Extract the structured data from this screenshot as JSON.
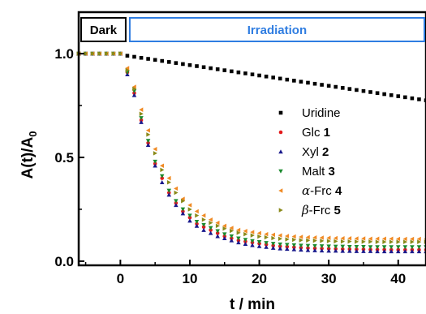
{
  "chart_data": {
    "type": "scatter",
    "xlabel": "t / min",
    "ylabel_main": "A(t)/A",
    "ylabel_sub": "0",
    "xlim": [
      -6,
      44
    ],
    "ylim": [
      -0.02,
      1.2
    ],
    "x_ticks": [
      {
        "value": 0,
        "label": "0"
      },
      {
        "value": 10,
        "label": "10"
      },
      {
        "value": 20,
        "label": "20"
      },
      {
        "value": 30,
        "label": "30"
      },
      {
        "value": 40,
        "label": "40"
      }
    ],
    "y_ticks": [
      {
        "value": 0.0,
        "label": "0.0"
      },
      {
        "value": 0.5,
        "label": "0.5"
      },
      {
        "value": 1.0,
        "label": "1.0"
      }
    ],
    "phases": [
      {
        "label": "Dark",
        "x_start": -6,
        "x_end": 1,
        "color": "#000000"
      },
      {
        "label": "Irradiation",
        "x_start": 1,
        "x_end": 44,
        "color": "#2f7de1"
      }
    ],
    "legend": {
      "position": "right"
    },
    "series": [
      {
        "name": "Uridine",
        "number": "",
        "prefix": "",
        "marker": "square",
        "color": "#000000",
        "x": [
          -6,
          -5,
          -4,
          -3,
          -2,
          -1,
          0,
          1,
          2,
          3,
          4,
          5,
          6,
          7,
          8,
          9,
          10,
          11,
          12,
          13,
          14,
          15,
          16,
          17,
          18,
          19,
          20,
          21,
          22,
          23,
          24,
          25,
          26,
          27,
          28,
          29,
          30,
          31,
          32,
          33,
          34,
          35,
          36,
          37,
          38,
          39,
          40,
          41,
          42,
          43,
          44
        ],
        "y": [
          1.0,
          1.0,
          1.0,
          1.0,
          1.0,
          1.0,
          1.0,
          0.99,
          0.985,
          0.98,
          0.975,
          0.97,
          0.965,
          0.96,
          0.955,
          0.95,
          0.945,
          0.94,
          0.935,
          0.93,
          0.925,
          0.92,
          0.915,
          0.91,
          0.905,
          0.9,
          0.895,
          0.89,
          0.885,
          0.88,
          0.875,
          0.87,
          0.865,
          0.86,
          0.855,
          0.85,
          0.845,
          0.84,
          0.835,
          0.83,
          0.825,
          0.82,
          0.815,
          0.81,
          0.805,
          0.8,
          0.795,
          0.79,
          0.785,
          0.78,
          0.775
        ]
      },
      {
        "name": "Glc",
        "number": "1",
        "prefix": "",
        "marker": "circle",
        "color": "#e31a1c",
        "x": [
          -6,
          -5,
          -4,
          -3,
          -2,
          -1,
          0,
          1,
          2,
          3,
          4,
          5,
          6,
          7,
          8,
          9,
          10,
          11,
          12,
          13,
          14,
          15,
          16,
          17,
          18,
          19,
          20,
          21,
          22,
          23,
          24,
          25,
          26,
          27,
          28,
          29,
          30,
          31,
          32,
          33,
          34,
          35,
          36,
          37,
          38,
          39,
          40,
          41,
          42,
          43,
          44
        ],
        "y": [
          1.0,
          1.0,
          1.0,
          1.0,
          1.0,
          1.0,
          1.0,
          0.91,
          0.81,
          0.68,
          0.57,
          0.47,
          0.4,
          0.33,
          0.28,
          0.24,
          0.21,
          0.18,
          0.165,
          0.15,
          0.135,
          0.12,
          0.11,
          0.1,
          0.095,
          0.09,
          0.085,
          0.08,
          0.075,
          0.072,
          0.07,
          0.067,
          0.065,
          0.063,
          0.062,
          0.061,
          0.06,
          0.059,
          0.058,
          0.058,
          0.057,
          0.057,
          0.056,
          0.056,
          0.056,
          0.055,
          0.055,
          0.055,
          0.055,
          0.055,
          0.055
        ]
      },
      {
        "name": "Xyl",
        "number": "2",
        "prefix": "",
        "marker": "triangle-up",
        "color": "#1a1a8c",
        "x": [
          -6,
          -5,
          -4,
          -3,
          -2,
          -1,
          0,
          1,
          2,
          3,
          4,
          5,
          6,
          7,
          8,
          9,
          10,
          11,
          12,
          13,
          14,
          15,
          16,
          17,
          18,
          19,
          20,
          21,
          22,
          23,
          24,
          25,
          26,
          27,
          28,
          29,
          30,
          31,
          32,
          33,
          34,
          35,
          36,
          37,
          38,
          39,
          40,
          41,
          42,
          43,
          44
        ],
        "y": [
          1.0,
          1.0,
          1.0,
          1.0,
          1.0,
          1.0,
          1.0,
          0.9,
          0.8,
          0.67,
          0.56,
          0.46,
          0.38,
          0.32,
          0.27,
          0.23,
          0.195,
          0.17,
          0.15,
          0.135,
          0.12,
          0.11,
          0.1,
          0.09,
          0.083,
          0.077,
          0.072,
          0.068,
          0.064,
          0.061,
          0.059,
          0.057,
          0.055,
          0.053,
          0.052,
          0.051,
          0.05,
          0.05,
          0.049,
          0.049,
          0.048,
          0.048,
          0.048,
          0.047,
          0.047,
          0.047,
          0.047,
          0.047,
          0.047,
          0.047,
          0.047
        ]
      },
      {
        "name": "Malt",
        "number": "3",
        "prefix": "",
        "marker": "triangle-down",
        "color": "#1a8a2e",
        "x": [
          -6,
          -5,
          -4,
          -3,
          -2,
          -1,
          0,
          1,
          2,
          3,
          4,
          5,
          6,
          7,
          8,
          9,
          10,
          11,
          12,
          13,
          14,
          15,
          16,
          17,
          18,
          19,
          20,
          21,
          22,
          23,
          24,
          25,
          26,
          27,
          28,
          29,
          30,
          31,
          32,
          33,
          34,
          35,
          36,
          37,
          38,
          39,
          40,
          41,
          42,
          43,
          44
        ],
        "y": [
          1.0,
          1.0,
          1.0,
          1.0,
          1.0,
          1.0,
          1.0,
          0.91,
          0.82,
          0.69,
          0.58,
          0.48,
          0.41,
          0.34,
          0.29,
          0.25,
          0.22,
          0.19,
          0.175,
          0.16,
          0.145,
          0.13,
          0.12,
          0.11,
          0.103,
          0.097,
          0.092,
          0.088,
          0.084,
          0.081,
          0.079,
          0.077,
          0.075,
          0.074,
          0.073,
          0.072,
          0.071,
          0.07,
          0.07,
          0.069,
          0.069,
          0.069,
          0.068,
          0.068,
          0.068,
          0.068,
          0.068,
          0.068,
          0.068,
          0.068,
          0.068
        ]
      },
      {
        "name": "Frc",
        "number": "4",
        "prefix": "α",
        "marker": "triangle-left",
        "color": "#f08a24",
        "x": [
          -6,
          -5,
          -4,
          -3,
          -2,
          -1,
          0,
          1,
          2,
          3,
          4,
          5,
          6,
          7,
          8,
          9,
          10,
          11,
          12,
          13,
          14,
          15,
          16,
          17,
          18,
          19,
          20,
          21,
          22,
          23,
          24,
          25,
          26,
          27,
          28,
          29,
          30,
          31,
          32,
          33,
          34,
          35,
          36,
          37,
          38,
          39,
          40,
          41,
          42,
          43,
          44
        ],
        "y": [
          1.0,
          1.0,
          1.0,
          1.0,
          1.0,
          1.0,
          1.0,
          0.93,
          0.84,
          0.73,
          0.63,
          0.54,
          0.46,
          0.4,
          0.35,
          0.3,
          0.27,
          0.24,
          0.22,
          0.2,
          0.185,
          0.17,
          0.16,
          0.15,
          0.145,
          0.14,
          0.135,
          0.13,
          0.127,
          0.124,
          0.121,
          0.119,
          0.117,
          0.115,
          0.114,
          0.113,
          0.112,
          0.111,
          0.11,
          0.11,
          0.109,
          0.109,
          0.108,
          0.108,
          0.108,
          0.108,
          0.107,
          0.107,
          0.107,
          0.107,
          0.107
        ]
      },
      {
        "name": "Frc",
        "number": "5",
        "prefix": "β",
        "marker": "triangle-right",
        "color": "#8a8a1a",
        "x": [
          -6,
          -5,
          -4,
          -3,
          -2,
          -1,
          0,
          1,
          2,
          3,
          4,
          5,
          6,
          7,
          8,
          9,
          10,
          11,
          12,
          13,
          14,
          15,
          16,
          17,
          18,
          19,
          20,
          21,
          22,
          23,
          24,
          25,
          26,
          27,
          28,
          29,
          30,
          31,
          32,
          33,
          34,
          35,
          36,
          37,
          38,
          39,
          40,
          41,
          42,
          43,
          44
        ],
        "y": [
          1.0,
          1.0,
          1.0,
          1.0,
          1.0,
          1.0,
          1.0,
          0.92,
          0.83,
          0.71,
          0.61,
          0.52,
          0.44,
          0.38,
          0.33,
          0.29,
          0.25,
          0.22,
          0.2,
          0.185,
          0.17,
          0.157,
          0.146,
          0.137,
          0.13,
          0.124,
          0.119,
          0.115,
          0.111,
          0.108,
          0.105,
          0.103,
          0.101,
          0.1,
          0.099,
          0.098,
          0.097,
          0.096,
          0.095,
          0.095,
          0.094,
          0.094,
          0.094,
          0.093,
          0.093,
          0.093,
          0.093,
          0.093,
          0.093,
          0.093,
          0.093
        ]
      }
    ]
  }
}
